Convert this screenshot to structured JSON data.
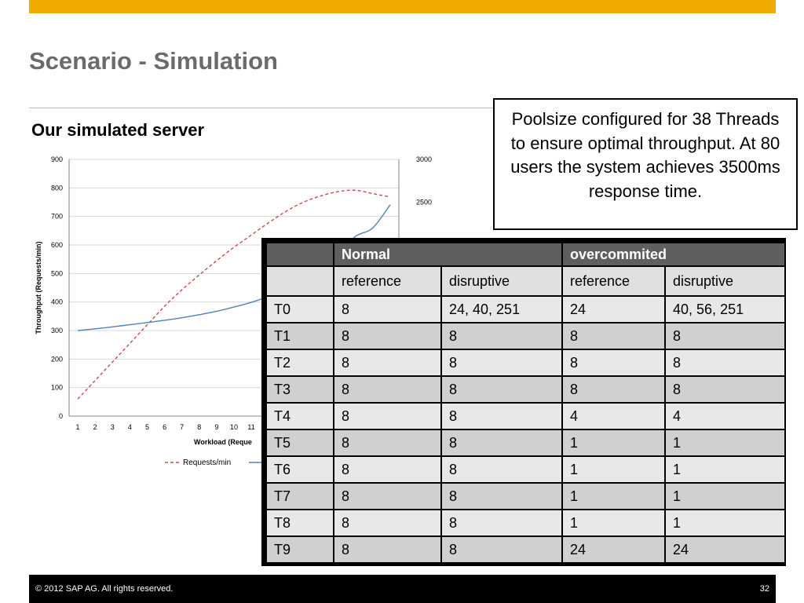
{
  "slide": {
    "title": "Scenario - Simulation",
    "subtitle": "Our simulated server",
    "callout": "Poolsize configured for 38 Threads to ensure optimal throughput. At 80 users the system achieves 3500ms response time.",
    "footer_copyright": "© 2012 SAP AG. All rights reserved.",
    "page_number": "32"
  },
  "colors": {
    "accent": "#f0ab00",
    "title": "#6b6b6b",
    "requests_line": "#c0504d",
    "response_line": "#4f81bd"
  },
  "chart_data": {
    "type": "line",
    "x": [
      1,
      2,
      3,
      4,
      5,
      6,
      7,
      8,
      9,
      10,
      11,
      12,
      13,
      14,
      15,
      16,
      17,
      18,
      19
    ],
    "xtick_labels": [
      "1",
      "2",
      "3",
      "4",
      "5",
      "6",
      "7",
      "8",
      "9",
      "10",
      "11"
    ],
    "xlabel": "Workload (Reque",
    "ylabel": "Throughput (Requests/min)",
    "ylim": [
      0,
      900
    ],
    "yticks": [
      "0",
      "100",
      "200",
      "300",
      "400",
      "500",
      "600",
      "700",
      "800",
      "900"
    ],
    "y2lim": [
      0,
      3000
    ],
    "y2ticks": [
      "2500",
      "3000"
    ],
    "grid": true,
    "legend_position": "bottom",
    "series": [
      {
        "name": "Requests/min",
        "axis": "left",
        "style": "dashed",
        "values": [
          60,
          125,
          190,
          255,
          320,
          385,
          443,
          495,
          545,
          592,
          635,
          678,
          718,
          750,
          772,
          787,
          792,
          780,
          768
        ]
      },
      {
        "name": "",
        "axis": "right",
        "style": "solid",
        "values": [
          1000,
          1020,
          1043,
          1068,
          1093,
          1120,
          1150,
          1185,
          1225,
          1275,
          1330,
          1400,
          1490,
          1600,
          1740,
          1900,
          2100,
          2200,
          2470
        ]
      }
    ]
  },
  "table": {
    "group_headers": [
      "",
      "Normal",
      "overcommited"
    ],
    "sub_headers": [
      "",
      "reference",
      "disruptive",
      "reference",
      "disruptive"
    ],
    "rows": [
      [
        "T0",
        "8",
        "24, 40, 251",
        "24",
        "40, 56, 251"
      ],
      [
        "T1",
        "8",
        "8",
        "8",
        "8"
      ],
      [
        "T2",
        "8",
        "8",
        "8",
        "8"
      ],
      [
        "T3",
        "8",
        "8",
        "8",
        "8"
      ],
      [
        "T4",
        "8",
        "8",
        "4",
        "4"
      ],
      [
        "T5",
        "8",
        "8",
        "1",
        "1"
      ],
      [
        "T6",
        "8",
        "8",
        "1",
        "1"
      ],
      [
        "T7",
        "8",
        "8",
        "1",
        "1"
      ],
      [
        "T8",
        "8",
        "8",
        "1",
        "1"
      ],
      [
        "T9",
        "8",
        "8",
        "24",
        "24"
      ]
    ]
  }
}
